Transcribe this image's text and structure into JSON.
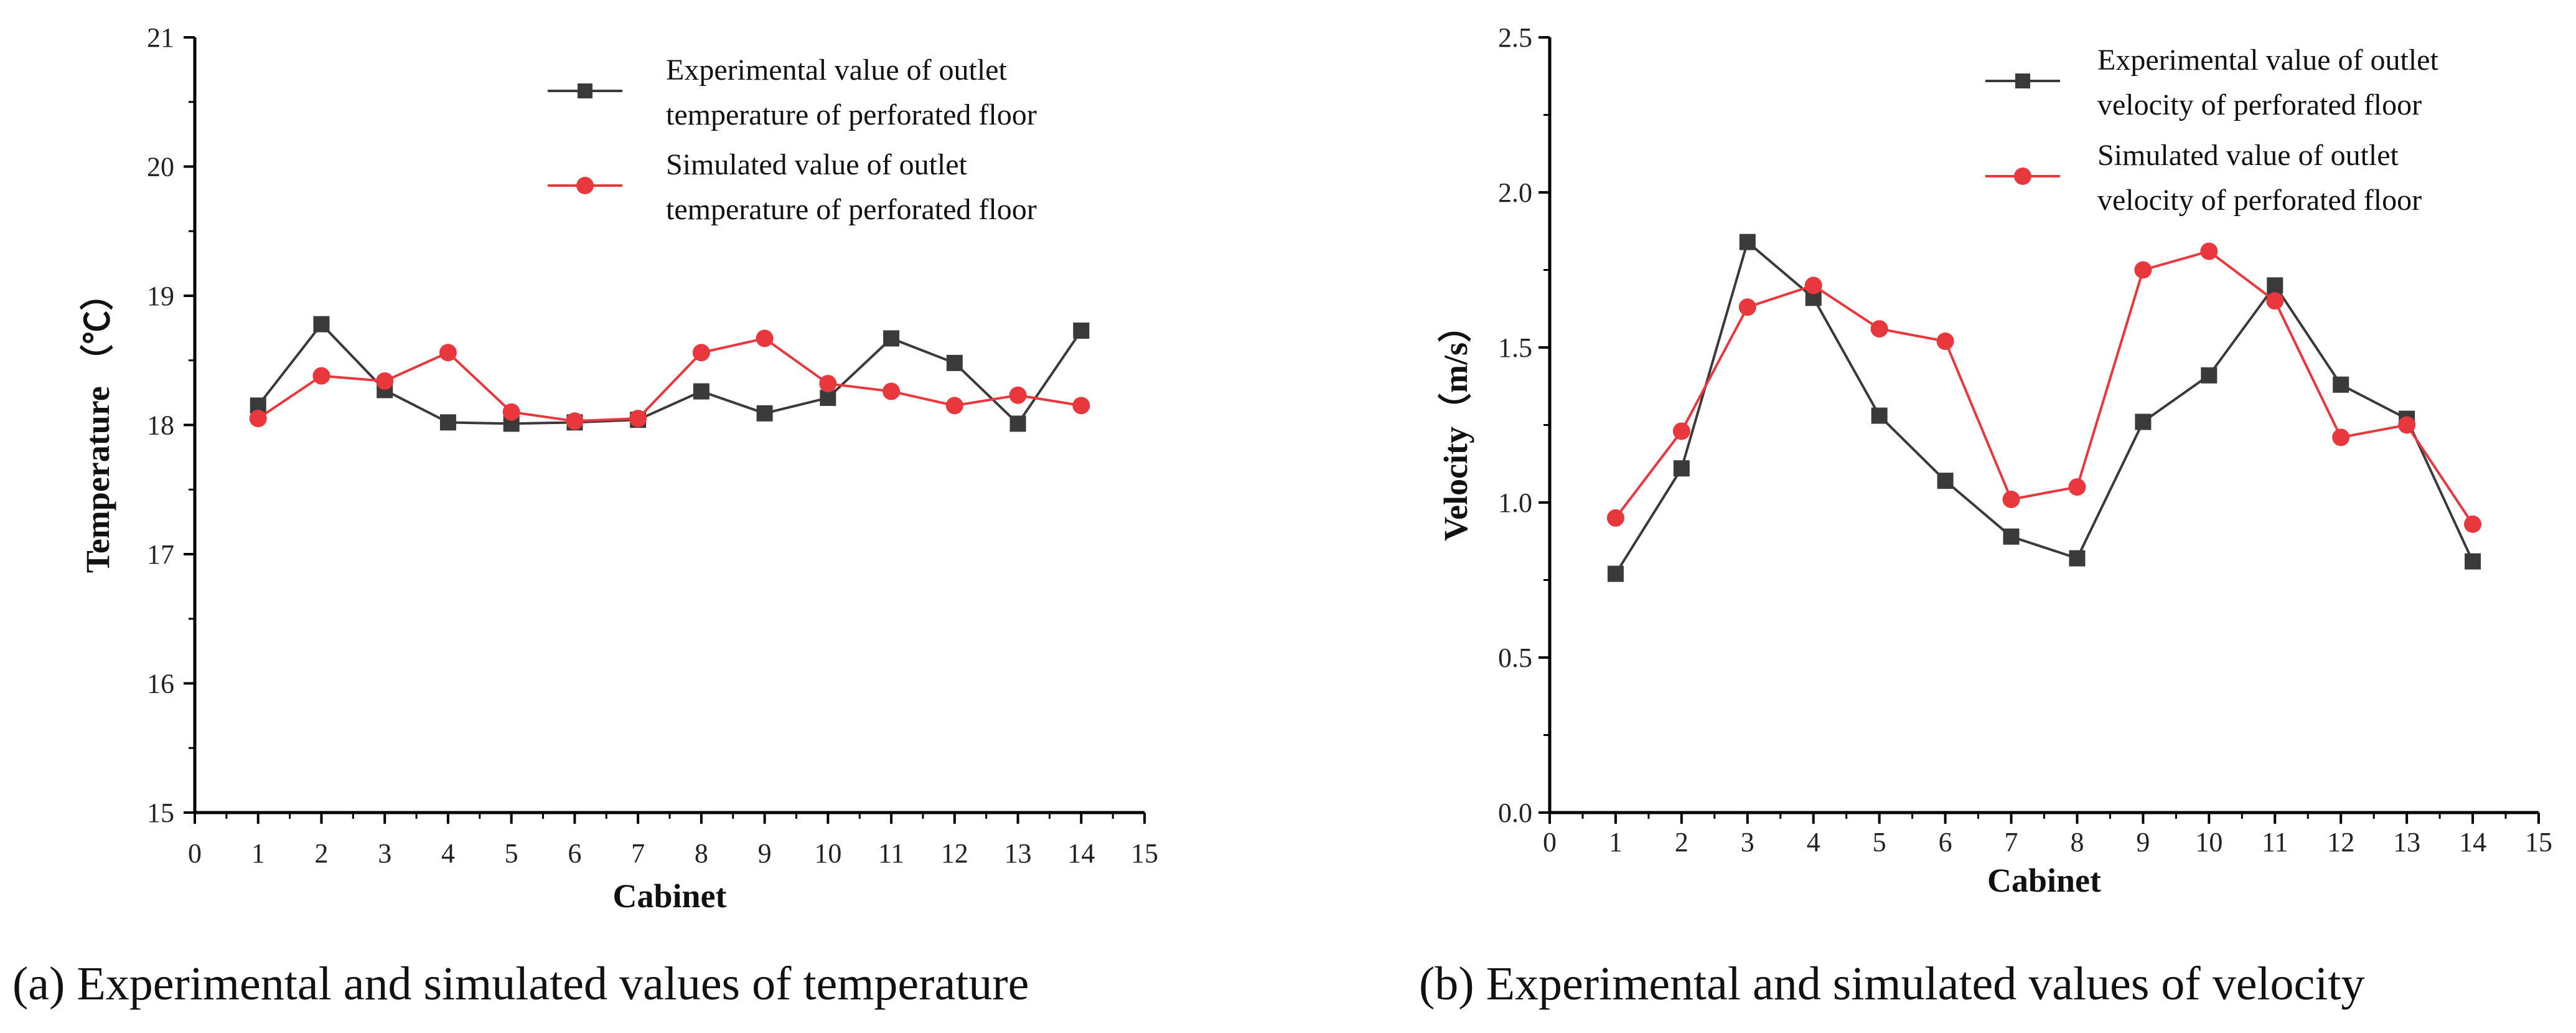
{
  "colors": {
    "experimental": "#3a3a3a",
    "simulated": "#e8383d",
    "axis": "#000000"
  },
  "chart_data": [
    {
      "type": "line",
      "caption": "(a) Experimental and simulated values of temperature",
      "xlabel": "Cabinet",
      "ylabel": "Temperature （℃）",
      "xlim": [
        0,
        15
      ],
      "ylim": [
        15,
        21
      ],
      "xticks": [
        "0",
        "1",
        "2",
        "3",
        "4",
        "5",
        "6",
        "7",
        "8",
        "9",
        "10",
        "11",
        "12",
        "13",
        "14",
        "15"
      ],
      "yticks": [
        "15",
        "16",
        "17",
        "18",
        "19",
        "20",
        "21"
      ],
      "legend_position": "top-right",
      "x": [
        1,
        2,
        3,
        4,
        5,
        6,
        7,
        8,
        9,
        10,
        11,
        12,
        13,
        14
      ],
      "series": [
        {
          "name": "Experimental value of outlet temperature of perforated floor",
          "legend_lines": [
            "Experimental value of outlet",
            "temperature of perforated floor"
          ],
          "marker": "square",
          "values": [
            18.15,
            18.78,
            18.27,
            18.02,
            18.01,
            18.02,
            18.04,
            18.26,
            18.09,
            18.21,
            18.67,
            18.48,
            18.01,
            18.73
          ]
        },
        {
          "name": "Simulated value of outlet temperature of perforated floor",
          "legend_lines": [
            "Simulated value of outlet",
            "temperature of perforated floor"
          ],
          "marker": "circle",
          "values": [
            18.05,
            18.38,
            18.34,
            18.56,
            18.1,
            18.03,
            18.05,
            18.56,
            18.67,
            18.32,
            18.26,
            18.15,
            18.23,
            18.15
          ]
        }
      ]
    },
    {
      "type": "line",
      "caption": "(b) Experimental and simulated values of velocity",
      "xlabel": "Cabinet",
      "ylabel": "Velocity（m/s）",
      "xlim": [
        0,
        15
      ],
      "ylim": [
        0,
        2.5
      ],
      "xticks": [
        "0",
        "1",
        "2",
        "3",
        "4",
        "5",
        "6",
        "7",
        "8",
        "9",
        "10",
        "11",
        "12",
        "13",
        "14",
        "15"
      ],
      "yticks": [
        "0.0",
        "0.5",
        "1.0",
        "1.5",
        "2.0",
        "2.5"
      ],
      "legend_position": "top-right",
      "x": [
        1,
        2,
        3,
        4,
        5,
        6,
        7,
        8,
        9,
        10,
        11,
        12,
        13,
        14
      ],
      "series": [
        {
          "name": "Experimental value of outlet velocity of perforated floor",
          "legend_lines": [
            "Experimental value of outlet",
            "velocity of perforated floor"
          ],
          "marker": "square",
          "values": [
            0.77,
            1.11,
            1.84,
            1.66,
            1.28,
            1.07,
            0.89,
            0.82,
            1.26,
            1.41,
            1.7,
            1.38,
            1.27,
            0.81
          ]
        },
        {
          "name": "Simulated value of outlet velocity of perforated floor",
          "legend_lines": [
            "Simulated value of outlet",
            "velocity of perforated floor"
          ],
          "marker": "circle",
          "values": [
            0.95,
            1.23,
            1.63,
            1.7,
            1.56,
            1.52,
            1.01,
            1.05,
            1.75,
            1.81,
            1.65,
            1.21,
            1.25,
            0.93
          ]
        }
      ]
    }
  ]
}
